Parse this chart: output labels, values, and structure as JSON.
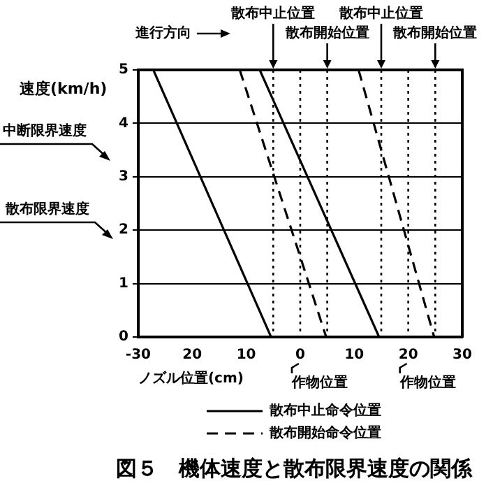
{
  "chart_data": {
    "type": "line",
    "title": "図５　機体速度と散布限界速度の関係",
    "xlabel": "ノズル位置(cm)",
    "ylabel": "速度(km/h)",
    "xlim": [
      -30,
      30
    ],
    "xticks": [
      -30,
      {
        "value": -20,
        "label": "20"
      },
      {
        "value": -10,
        "label": "10"
      },
      0,
      10,
      20,
      30
    ],
    "ylim": [
      0,
      5
    ],
    "yticks": [
      0,
      1,
      2,
      3,
      4,
      5
    ],
    "grid": "y",
    "legend": "bottom",
    "marker": "none",
    "series": [
      {
        "name": "散布中止命令位置",
        "color": "#000000",
        "line_style": "solid",
        "x": [
          -27.2,
          -5.4
        ],
        "values": [
          5,
          0
        ]
      },
      {
        "name": "散布開始命令位置",
        "color": "#000000",
        "line_style": "dashed",
        "x": [
          -11.2,
          4.8
        ],
        "values": [
          5,
          0
        ]
      },
      {
        "color": "#000000",
        "line_style": "solid",
        "x": [
          -7.5,
          14.6
        ],
        "values": [
          5,
          0
        ]
      },
      {
        "color": "#000000",
        "line_style": "dashed",
        "x": [
          10.8,
          24.8
        ],
        "values": [
          5,
          0
        ]
      }
    ],
    "ref_lines": [
      {
        "axis": "x",
        "value": -5,
        "label": "散布中止位置",
        "line_style": "dotted"
      },
      {
        "axis": "x",
        "value": 5,
        "label": "散布開始位置",
        "line_style": "dotted"
      },
      {
        "axis": "x",
        "value": 0,
        "label": "作物位置",
        "line_style": "dotted"
      },
      {
        "axis": "x",
        "value": 15,
        "label": "散布中止位置",
        "line_style": "dotted"
      },
      {
        "axis": "x",
        "value": 25,
        "label": "散布開始位置",
        "line_style": "dotted"
      },
      {
        "axis": "x",
        "value": 20,
        "label": "作物位置",
        "line_style": "dotted"
      }
    ],
    "annotations": [
      "進行方向",
      "中断限界速度",
      "散布限界速度"
    ]
  }
}
